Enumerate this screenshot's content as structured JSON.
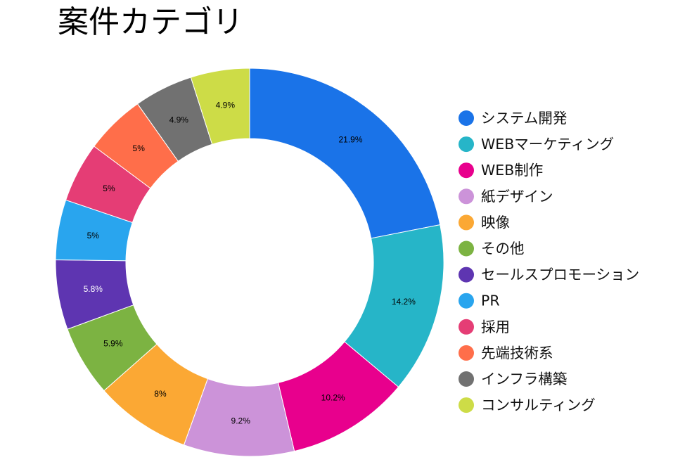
{
  "chart_data": {
    "type": "pie",
    "donut": true,
    "title": "案件カテゴリ",
    "legend_position": "right",
    "categories": [
      "システム開発",
      "WEBマーケティング",
      "WEB制作",
      "紙デザイン",
      "映像",
      "その他",
      "セールスプロモーション",
      "PR",
      "採用",
      "先端技術系",
      "インフラ構築",
      "コンサルティング"
    ],
    "values": [
      21.9,
      14.2,
      10.2,
      9.2,
      8,
      5.9,
      5.8,
      5,
      5,
      5,
      4.9,
      4.9
    ],
    "value_labels": [
      "21.9%",
      "14.2%",
      "10.2%",
      "9.2%",
      "8%",
      "5.9%",
      "5.8%",
      "5%",
      "5%",
      "5%",
      "4.9%",
      "4.9%"
    ],
    "colors": [
      "#1a73e8",
      "#26b5c8",
      "#e8008d",
      "#cc93d9",
      "#fba834",
      "#7cb342",
      "#5e35b1",
      "#29a5ee",
      "#e53d75",
      "#ff6e4a",
      "#717171",
      "#cddc47"
    ],
    "label_colors": [
      "#000000",
      "#000000",
      "#000000",
      "#000000",
      "#000000",
      "#000000",
      "#ffffff",
      "#000000",
      "#000000",
      "#000000",
      "#000000",
      "#000000"
    ]
  }
}
